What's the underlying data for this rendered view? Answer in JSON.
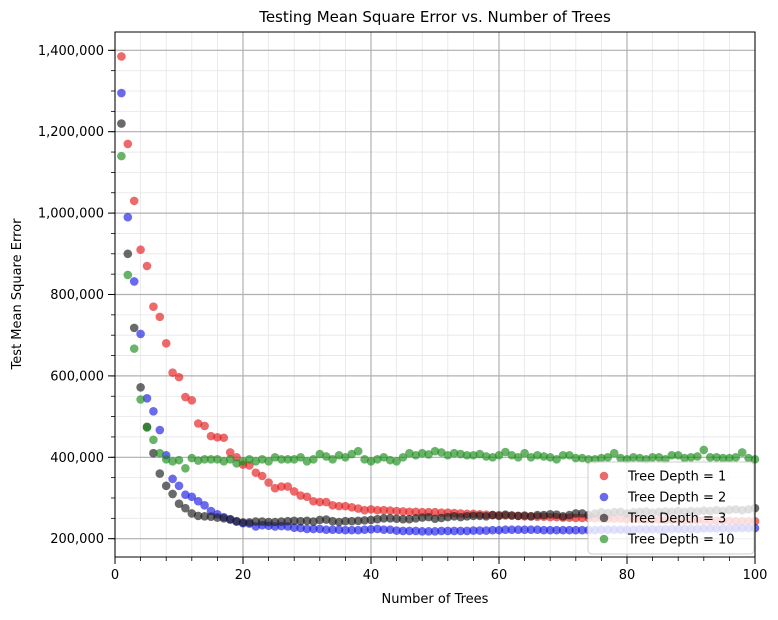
{
  "chart_data": {
    "type": "scatter",
    "title": "Testing Mean Square Error vs. Number of Trees",
    "xlabel": "Number of Trees",
    "ylabel": "Test Mean Square Error",
    "xlim": [
      0,
      100
    ],
    "ylim": [
      155000,
      1445000
    ],
    "x_ticks": [
      0,
      20,
      40,
      60,
      80,
      100
    ],
    "x_tick_labels": [
      "0",
      "20",
      "40",
      "60",
      "80",
      "100"
    ],
    "y_ticks": [
      200000,
      400000,
      600000,
      800000,
      1000000,
      1200000,
      1400000
    ],
    "y_tick_labels": [
      "200,000",
      "400,000",
      "600,000",
      "800,000",
      "1,000,000",
      "1,200,000",
      "1,400,000"
    ],
    "grid": true,
    "legend_position": "lower-right",
    "series": [
      {
        "name": "Tree Depth = 1",
        "color": "#e41a1c",
        "x": [
          1,
          2,
          3,
          4,
          5,
          6,
          7,
          8,
          9,
          10,
          11,
          12,
          13,
          14,
          15,
          16,
          17,
          18,
          19,
          20,
          21,
          22,
          23,
          24,
          25,
          26,
          27,
          28,
          29,
          30,
          31,
          32,
          33,
          34,
          35,
          36,
          37,
          38,
          39,
          40,
          41,
          42,
          43,
          44,
          45,
          46,
          47,
          48,
          49,
          50,
          51,
          52,
          53,
          54,
          55,
          56,
          57,
          58,
          59,
          60,
          61,
          62,
          63,
          64,
          65,
          66,
          67,
          68,
          69,
          70,
          71,
          72,
          73,
          74,
          75,
          76,
          77,
          78,
          79,
          80,
          81,
          82,
          83,
          84,
          85,
          86,
          87,
          88,
          89,
          90,
          91,
          92,
          93,
          94,
          95,
          96,
          97,
          98,
          99,
          100
        ],
        "y": [
          1385000,
          1170000,
          1030000,
          910000,
          870000,
          770000,
          745000,
          680000,
          608000,
          597000,
          548000,
          540000,
          483000,
          477000,
          452000,
          449000,
          448000,
          412000,
          400000,
          382000,
          380000,
          362000,
          354000,
          338000,
          324000,
          328000,
          328000,
          316000,
          306000,
          303000,
          292000,
          290000,
          290000,
          282000,
          280000,
          280000,
          277000,
          274000,
          270000,
          272000,
          270000,
          270000,
          269000,
          268000,
          267000,
          266000,
          266000,
          265000,
          265000,
          265000,
          264000,
          264000,
          263000,
          262000,
          261000,
          261000,
          260000,
          259000,
          258000,
          258000,
          257000,
          257000,
          256000,
          255000,
          255000,
          254000,
          254000,
          253000,
          253000,
          252000,
          252000,
          251000,
          251000,
          251000,
          250000,
          250000,
          249000,
          249000,
          249000,
          248000,
          248000,
          248000,
          247000,
          247000,
          247000,
          246000,
          246000,
          246000,
          245000,
          245000,
          245000,
          245000,
          244000,
          244000,
          244000,
          244000,
          243000,
          243000,
          243000,
          243000
        ]
      },
      {
        "name": "Tree Depth = 2",
        "color": "#1a1ae4",
        "x": [
          1,
          2,
          3,
          4,
          5,
          6,
          7,
          8,
          9,
          10,
          11,
          12,
          13,
          14,
          15,
          16,
          17,
          18,
          19,
          20,
          21,
          22,
          23,
          24,
          25,
          26,
          27,
          28,
          29,
          30,
          31,
          32,
          33,
          34,
          35,
          36,
          37,
          38,
          39,
          40,
          41,
          42,
          43,
          44,
          45,
          46,
          47,
          48,
          49,
          50,
          51,
          52,
          53,
          54,
          55,
          56,
          57,
          58,
          59,
          60,
          61,
          62,
          63,
          64,
          65,
          66,
          67,
          68,
          69,
          70,
          71,
          72,
          73,
          74,
          75,
          76,
          77,
          78,
          79,
          80,
          81,
          82,
          83,
          84,
          85,
          86,
          87,
          88,
          89,
          90,
          91,
          92,
          93,
          94,
          95,
          96,
          97,
          98,
          99,
          100
        ],
        "y": [
          1295000,
          990000,
          832000,
          703000,
          545000,
          513000,
          467000,
          405000,
          347000,
          330000,
          308000,
          303000,
          292000,
          282000,
          268000,
          260000,
          253000,
          247000,
          243000,
          238000,
          237000,
          230000,
          233000,
          232000,
          230000,
          231000,
          230000,
          227000,
          226000,
          224000,
          224000,
          224000,
          222000,
          222000,
          222000,
          221000,
          221000,
          221000,
          222000,
          223000,
          224000,
          222000,
          222000,
          220000,
          219000,
          219000,
          219000,
          218000,
          218000,
          218000,
          219000,
          219000,
          219000,
          219000,
          219000,
          220000,
          220000,
          220000,
          221000,
          221000,
          222000,
          222000,
          222000,
          222000,
          222000,
          222000,
          221000,
          221000,
          221000,
          221000,
          221000,
          221000,
          221000,
          221000,
          221000,
          222000,
          222000,
          222000,
          222000,
          222000,
          222000,
          223000,
          223000,
          223000,
          223000,
          223000,
          224000,
          224000,
          224000,
          224000,
          224000,
          225000,
          225000,
          225000,
          225000,
          225000,
          226000,
          226000,
          226000,
          226000
        ]
      },
      {
        "name": "Tree Depth = 3",
        "color": "#1a1a1a",
        "x": [
          1,
          2,
          3,
          4,
          5,
          6,
          7,
          8,
          9,
          10,
          11,
          12,
          13,
          14,
          15,
          16,
          17,
          18,
          19,
          20,
          21,
          22,
          23,
          24,
          25,
          26,
          27,
          28,
          29,
          30,
          31,
          32,
          33,
          34,
          35,
          36,
          37,
          38,
          39,
          40,
          41,
          42,
          43,
          44,
          45,
          46,
          47,
          48,
          49,
          50,
          51,
          52,
          53,
          54,
          55,
          56,
          57,
          58,
          59,
          60,
          61,
          62,
          63,
          64,
          65,
          66,
          67,
          68,
          69,
          70,
          71,
          72,
          73,
          74,
          75,
          76,
          77,
          78,
          79,
          80,
          81,
          82,
          83,
          84,
          85,
          86,
          87,
          88,
          89,
          90,
          91,
          92,
          93,
          94,
          95,
          96,
          97,
          98,
          99,
          100
        ],
        "y": [
          1220000,
          900000,
          718000,
          572000,
          475000,
          410000,
          360000,
          330000,
          310000,
          286000,
          275000,
          262000,
          256000,
          255000,
          254000,
          252000,
          250000,
          248000,
          242000,
          240000,
          240000,
          242000,
          242000,
          241000,
          241000,
          242000,
          243000,
          244000,
          243000,
          244000,
          242000,
          246000,
          247000,
          243000,
          241000,
          243000,
          243000,
          244000,
          245000,
          246000,
          248000,
          250000,
          250000,
          249000,
          248000,
          248000,
          250000,
          252000,
          253000,
          249000,
          251000,
          253000,
          255000,
          253000,
          255000,
          256000,
          256000,
          255000,
          258000,
          256000,
          259000,
          257000,
          256000,
          257000,
          255000,
          258000,
          258000,
          260000,
          259000,
          255000,
          258000,
          262000,
          262000,
          258000,
          262000,
          265000,
          263000,
          265000,
          266000,
          262000,
          265000,
          266000,
          267000,
          264000,
          266000,
          267000,
          266000,
          268000,
          266000,
          268000,
          267000,
          269000,
          268000,
          270000,
          268000,
          271000,
          272000,
          270000,
          272000,
          275000
        ]
      },
      {
        "name": "Tree Depth = 10",
        "color": "#1a8c1a",
        "x": [
          1,
          2,
          3,
          4,
          5,
          6,
          7,
          8,
          9,
          10,
          11,
          12,
          13,
          14,
          15,
          16,
          17,
          18,
          19,
          20,
          21,
          22,
          23,
          24,
          25,
          26,
          27,
          28,
          29,
          30,
          31,
          32,
          33,
          34,
          35,
          36,
          37,
          38,
          39,
          40,
          41,
          42,
          43,
          44,
          45,
          46,
          47,
          48,
          49,
          50,
          51,
          52,
          53,
          54,
          55,
          56,
          57,
          58,
          59,
          60,
          61,
          62,
          63,
          64,
          65,
          66,
          67,
          68,
          69,
          70,
          71,
          72,
          73,
          74,
          75,
          76,
          77,
          78,
          79,
          80,
          81,
          82,
          83,
          84,
          85,
          86,
          87,
          88,
          89,
          90,
          91,
          92,
          93,
          94,
          95,
          96,
          97,
          98,
          99,
          100
        ],
        "y": [
          1140000,
          848000,
          667000,
          542000,
          473000,
          443000,
          410000,
          395000,
          390000,
          393000,
          373000,
          398000,
          392000,
          395000,
          395000,
          395000,
          390000,
          395000,
          385000,
          390000,
          395000,
          390000,
          395000,
          390000,
          400000,
          395000,
          395000,
          395000,
          400000,
          390000,
          395000,
          408000,
          402000,
          395000,
          405000,
          400000,
          408000,
          415000,
          395000,
          390000,
          395000,
          400000,
          393000,
          390000,
          400000,
          410000,
          405000,
          410000,
          407000,
          415000,
          412000,
          405000,
          410000,
          408000,
          405000,
          405000,
          408000,
          402000,
          400000,
          405000,
          413000,
          405000,
          400000,
          410000,
          400000,
          405000,
          402000,
          400000,
          395000,
          405000,
          405000,
          398000,
          398000,
          395000,
          395000,
          398000,
          400000,
          410000,
          398000,
          395000,
          400000,
          398000,
          395000,
          400000,
          400000,
          395000,
          405000,
          405000,
          398000,
          400000,
          402000,
          418000,
          400000,
          400000,
          398000,
          398000,
          400000,
          412000,
          398000,
          395000
        ]
      }
    ]
  }
}
